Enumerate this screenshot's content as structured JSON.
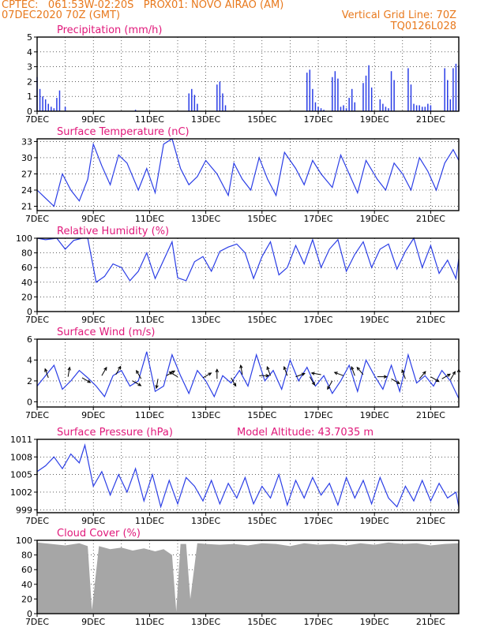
{
  "header": {
    "line1_left": "CPTEC:   061:53W-02:20S   PROX01: NOVO AIRAO (AM)",
    "line2_left": "07DEC2020 70Z (GMT)",
    "line2_right": "Vertical Grid Line: 70Z",
    "line3_right": "TQ0126L028"
  },
  "colors": {
    "header": "#e8791d",
    "title": "#e0187a",
    "series": "#2b3ee6",
    "cloud": "#a6a6a6"
  },
  "chart_data": [
    {
      "id": "precip",
      "type": "bar",
      "title": "Precipitation (mm/h)",
      "ylim": [
        0,
        5
      ],
      "yticks": [
        "0",
        "1",
        "2",
        "3",
        "4",
        "5"
      ],
      "xticks": [
        "7DEC",
        "9DEC",
        "11DEC",
        "13DEC",
        "15DEC",
        "17DEC",
        "19DEC",
        "21DEC"
      ],
      "x": [
        7.0,
        7.1,
        7.2,
        7.3,
        7.4,
        7.5,
        7.6,
        7.7,
        7.8,
        8.0,
        10.5,
        12.4,
        12.5,
        12.6,
        12.7,
        13.4,
        13.5,
        13.6,
        13.7,
        16.6,
        16.7,
        16.8,
        16.9,
        17.0,
        17.1,
        17.2,
        17.5,
        17.6,
        17.7,
        17.8,
        17.9,
        18.0,
        18.1,
        18.2,
        18.3,
        18.6,
        18.7,
        18.8,
        18.9,
        19.2,
        19.3,
        19.4,
        19.5,
        19.6,
        19.7,
        20.2,
        20.3,
        20.4,
        20.5,
        20.6,
        20.7,
        20.8,
        20.9,
        21.0,
        21.5,
        21.6,
        21.7,
        21.8,
        21.9,
        22.0
      ],
      "values": [
        2.3,
        1.5,
        1.0,
        0.8,
        0.5,
        0.3,
        0.2,
        0.9,
        1.4,
        0.3,
        0.1,
        1.2,
        1.5,
        1.1,
        0.5,
        1.8,
        2.0,
        1.2,
        0.4,
        2.6,
        2.8,
        1.5,
        0.6,
        0.3,
        0.2,
        0.1,
        2.3,
        2.7,
        2.2,
        0.3,
        0.4,
        0.2,
        0.9,
        1.5,
        0.6,
        1.9,
        2.4,
        3.1,
        1.6,
        0.8,
        0.5,
        0.3,
        0.2,
        2.7,
        2.1,
        2.9,
        1.8,
        0.5,
        0.4,
        0.4,
        0.3,
        0.3,
        0.5,
        0.4,
        2.9,
        2.1,
        0.8,
        2.9,
        3.2,
        3.1
      ]
    },
    {
      "id": "temp",
      "type": "line",
      "title": "Surface Temperature (nC)",
      "ylim": [
        20.2,
        33.5
      ],
      "yticks": [
        "21",
        "24",
        "27",
        "30",
        "33"
      ],
      "xticks": [
        "7DEC",
        "9DEC",
        "11DEC",
        "13DEC",
        "15DEC",
        "17DEC",
        "19DEC",
        "21DEC"
      ],
      "x": [
        7.0,
        7.3,
        7.6,
        7.9,
        8.2,
        8.5,
        8.8,
        9.0,
        9.3,
        9.6,
        9.9,
        10.2,
        10.6,
        10.9,
        11.2,
        11.5,
        11.8,
        12.1,
        12.4,
        12.7,
        13.0,
        13.4,
        13.8,
        14.0,
        14.3,
        14.6,
        14.9,
        15.2,
        15.5,
        15.8,
        16.2,
        16.5,
        16.8,
        17.1,
        17.5,
        17.8,
        18.1,
        18.4,
        18.7,
        19.1,
        19.4,
        19.7,
        20.0,
        20.3,
        20.6,
        20.9,
        21.2,
        21.5,
        21.8,
        22.0
      ],
      "values": [
        24.0,
        22.5,
        21.0,
        27.0,
        24.0,
        22.0,
        26.0,
        32.5,
        28.5,
        25.0,
        30.5,
        29.0,
        24.0,
        28.0,
        23.5,
        32.5,
        33.5,
        28.0,
        25.0,
        26.5,
        29.5,
        27.0,
        23.0,
        29.0,
        26.0,
        24.0,
        30.0,
        26.0,
        23.0,
        31.0,
        28.0,
        25.0,
        29.5,
        27.0,
        24.5,
        30.5,
        27.0,
        23.5,
        29.5,
        26.0,
        24.0,
        29.0,
        27.0,
        24.0,
        30.0,
        27.5,
        24.0,
        29.0,
        31.5,
        29.5
      ]
    },
    {
      "id": "rh",
      "type": "line",
      "title": "Relative Humidity (%)",
      "ylim": [
        0,
        100
      ],
      "yticks": [
        "0",
        "20",
        "40",
        "60",
        "80",
        "100"
      ],
      "xticks": [
        "7DEC",
        "9DEC",
        "11DEC",
        "13DEC",
        "15DEC",
        "17DEC",
        "19DEC",
        "21DEC"
      ],
      "x": [
        7.0,
        7.3,
        7.7,
        8.0,
        8.3,
        8.6,
        8.8,
        9.1,
        9.4,
        9.7,
        10.0,
        10.3,
        10.6,
        10.9,
        11.2,
        11.5,
        11.8,
        12.0,
        12.3,
        12.6,
        12.9,
        13.2,
        13.5,
        13.8,
        14.1,
        14.4,
        14.7,
        15.0,
        15.3,
        15.6,
        15.9,
        16.2,
        16.5,
        16.8,
        17.1,
        17.4,
        17.7,
        18.0,
        18.3,
        18.6,
        18.9,
        19.2,
        19.5,
        19.8,
        20.1,
        20.4,
        20.7,
        21.0,
        21.3,
        21.6,
        21.9,
        22.0
      ],
      "values": [
        100,
        98,
        100,
        85,
        97,
        100,
        100,
        40,
        48,
        65,
        60,
        42,
        55,
        80,
        45,
        70,
        95,
        46,
        42,
        68,
        75,
        55,
        82,
        88,
        92,
        80,
        45,
        75,
        95,
        50,
        60,
        90,
        65,
        98,
        60,
        85,
        98,
        55,
        78,
        95,
        60,
        85,
        92,
        58,
        82,
        100,
        60,
        90,
        52,
        70,
        45,
        72
      ]
    },
    {
      "id": "wind",
      "type": "line",
      "title": "Surface Wind (m/s)",
      "ylim": [
        -0.5,
        6
      ],
      "yticks": [
        "0",
        "2",
        "4",
        "6"
      ],
      "xticks": [
        "7DEC",
        "9DEC",
        "11DEC",
        "13DEC",
        "15DEC",
        "17DEC",
        "19DEC",
        "21DEC"
      ],
      "x": [
        7.0,
        7.3,
        7.6,
        7.9,
        8.2,
        8.5,
        8.8,
        9.1,
        9.4,
        9.7,
        10.0,
        10.3,
        10.6,
        10.9,
        11.2,
        11.5,
        11.8,
        12.1,
        12.4,
        12.7,
        13.0,
        13.3,
        13.6,
        13.9,
        14.2,
        14.5,
        14.8,
        15.1,
        15.4,
        15.7,
        16.0,
        16.3,
        16.6,
        16.9,
        17.2,
        17.5,
        17.8,
        18.1,
        18.4,
        18.7,
        19.0,
        19.3,
        19.6,
        19.9,
        20.2,
        20.5,
        20.8,
        21.1,
        21.4,
        21.7,
        22.0
      ],
      "values": [
        1.5,
        2.5,
        3.5,
        1.2,
        2.0,
        3.0,
        2.3,
        1.5,
        0.5,
        2.5,
        3.0,
        1.5,
        2.0,
        4.8,
        1.0,
        1.5,
        4.5,
        2.5,
        0.8,
        3.0,
        2.0,
        0.5,
        2.5,
        1.8,
        3.0,
        1.5,
        4.5,
        2.0,
        3.0,
        1.2,
        4.0,
        2.0,
        3.3,
        1.5,
        2.5,
        0.8,
        2.0,
        3.5,
        1.0,
        4.0,
        2.5,
        1.2,
        3.5,
        1.0,
        4.5,
        1.8,
        2.5,
        1.5,
        3.0,
        2.0,
        0.3
      ],
      "arrows": [
        [
          7.4,
          2.3,
          -110
        ],
        [
          8.1,
          2.4,
          -80
        ],
        [
          8.6,
          2.3,
          30
        ],
        [
          9.3,
          2.5,
          -60
        ],
        [
          9.8,
          2.6,
          -60
        ],
        [
          10.4,
          2.0,
          30
        ],
        [
          10.7,
          2.2,
          -120
        ],
        [
          11.3,
          2.2,
          100
        ],
        [
          11.6,
          2.5,
          -30
        ],
        [
          12.0,
          2.4,
          -150
        ],
        [
          12.9,
          2.3,
          -30
        ],
        [
          13.4,
          2.2,
          -90
        ],
        [
          13.9,
          2.3,
          60
        ],
        [
          14.3,
          2.6,
          -100
        ],
        [
          14.9,
          2.5,
          0
        ],
        [
          15.3,
          2.5,
          -110
        ],
        [
          15.9,
          2.5,
          -110
        ],
        [
          16.2,
          2.4,
          -20
        ],
        [
          16.7,
          2.4,
          60
        ],
        [
          17.1,
          2.6,
          -170
        ],
        [
          17.5,
          2.0,
          120
        ],
        [
          17.9,
          2.5,
          -160
        ],
        [
          18.3,
          2.5,
          -110
        ],
        [
          18.6,
          2.6,
          -130
        ],
        [
          19.1,
          2.4,
          0
        ],
        [
          19.6,
          2.2,
          30
        ],
        [
          20.1,
          2.2,
          -110
        ],
        [
          20.6,
          2.2,
          -50
        ],
        [
          21.0,
          2.4,
          30
        ],
        [
          21.4,
          2.2,
          -30
        ],
        [
          21.7,
          2.1,
          -60
        ],
        [
          22.0,
          2.2,
          -90
        ]
      ]
    },
    {
      "id": "pressure",
      "type": "line",
      "title": "Surface Pressure (hPa)",
      "subtitle": "Model Altitude: 43.7035 m",
      "ylim": [
        998.5,
        1011
      ],
      "yticks": [
        "999",
        "1002",
        "1005",
        "1008",
        "1011"
      ],
      "xticks": [
        "7DEC",
        "9DEC",
        "11DEC",
        "13DEC",
        "15DEC",
        "17DEC",
        "19DEC",
        "21DEC"
      ],
      "x": [
        7.0,
        7.3,
        7.6,
        7.9,
        8.2,
        8.5,
        8.7,
        9.0,
        9.3,
        9.6,
        9.9,
        10.2,
        10.5,
        10.8,
        11.1,
        11.4,
        11.7,
        12.0,
        12.3,
        12.6,
        12.9,
        13.2,
        13.5,
        13.8,
        14.1,
        14.4,
        14.7,
        15.0,
        15.3,
        15.6,
        15.9,
        16.2,
        16.5,
        16.8,
        17.1,
        17.4,
        17.7,
        18.0,
        18.3,
        18.6,
        18.9,
        19.2,
        19.5,
        19.8,
        20.1,
        20.4,
        20.7,
        21.0,
        21.3,
        21.6,
        21.9,
        22.0
      ],
      "values": [
        1005.5,
        1006.5,
        1008.0,
        1006.0,
        1008.5,
        1007.0,
        1010.0,
        1003.0,
        1005.5,
        1001.5,
        1005.0,
        1002.0,
        1006.0,
        1000.5,
        1005.0,
        999.5,
        1004.0,
        1000.0,
        1004.5,
        1003.0,
        1000.5,
        1004.0,
        1000.0,
        1003.5,
        1001.0,
        1004.5,
        1000.0,
        1003.0,
        1001.0,
        1005.0,
        999.8,
        1004.0,
        1001.0,
        1004.5,
        1001.5,
        1003.5,
        999.8,
        1004.5,
        1001.0,
        1004.0,
        1000.0,
        1004.5,
        1001.0,
        999.5,
        1003.0,
        1000.5,
        1004.0,
        1000.5,
        1003.5,
        1001.0,
        1002.0,
        999.5
      ]
    },
    {
      "id": "cloud",
      "type": "area",
      "title": "Cloud Cover (%)",
      "ylim": [
        0,
        100
      ],
      "yticks": [
        "0",
        "20",
        "40",
        "60",
        "80",
        "100"
      ],
      "xticks": [
        "7DEC",
        "9DEC",
        "11DEC",
        "13DEC",
        "15DEC",
        "17DEC",
        "19DEC",
        "21DEC"
      ],
      "x": [
        7.0,
        7.5,
        8.0,
        8.5,
        8.8,
        8.95,
        9.2,
        9.6,
        10.0,
        10.4,
        10.8,
        11.2,
        11.5,
        11.8,
        11.95,
        12.1,
        12.3,
        12.45,
        12.7,
        13.0,
        13.5,
        14.0,
        14.5,
        15.0,
        15.5,
        16.0,
        16.5,
        17.0,
        17.5,
        18.0,
        18.5,
        19.0,
        19.5,
        20.0,
        20.5,
        21.0,
        21.5,
        22.0
      ],
      "values": [
        97,
        95,
        93,
        96,
        92,
        5,
        92,
        88,
        90,
        86,
        89,
        85,
        88,
        80,
        3,
        95,
        95,
        20,
        96,
        95,
        94,
        95,
        93,
        96,
        95,
        92,
        96,
        94,
        95,
        93,
        96,
        94,
        97,
        95,
        96,
        93,
        95,
        96
      ]
    }
  ]
}
